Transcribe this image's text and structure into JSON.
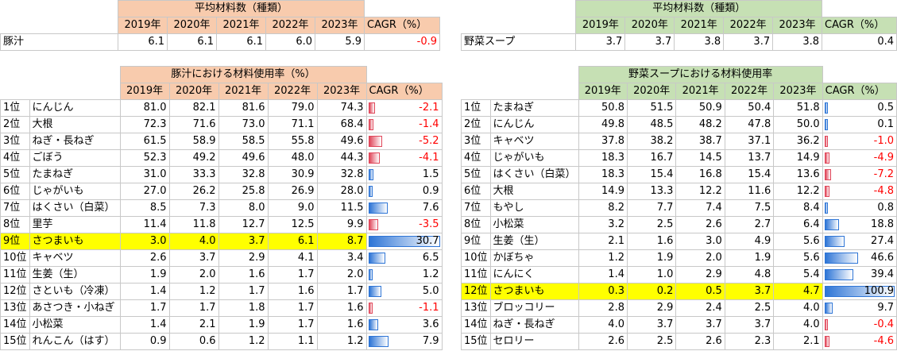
{
  "colors": {
    "pork_header": "#f8cbad",
    "veg_header": "#c6e0b4",
    "highlight": "#ffff00",
    "negative": "#ff0000",
    "bar_positive": "#2e75d6",
    "bar_negative": "#e0475a"
  },
  "top_left": {
    "title": "平均材料数（種類）",
    "years": [
      "2019年",
      "2020年",
      "2021年",
      "2022年",
      "2023年"
    ],
    "cagr_label": "CAGR（%）",
    "row": {
      "name": "豚汁",
      "values": [
        "6.1",
        "6.1",
        "6.1",
        "6.0",
        "5.9"
      ],
      "cagr": "-0.9"
    }
  },
  "top_right": {
    "title": "平均材料数（種類）",
    "years": [
      "2019年",
      "2020年",
      "2021年",
      "2022年",
      "2023年"
    ],
    "cagr_label": "CAGR（%）",
    "row": {
      "name": "野菜スープ",
      "values": [
        "3.7",
        "3.7",
        "3.8",
        "3.7",
        "3.8"
      ],
      "cagr": "0.4"
    }
  },
  "pork_usage": {
    "title": "豚汁における材料使用率（%）",
    "years": [
      "2019年",
      "2020年",
      "2021年",
      "2022年",
      "2023年"
    ],
    "cagr_label": "CAGR（%）",
    "rows": [
      {
        "rank": "1位",
        "name": "にんじん",
        "values": [
          "81.0",
          "82.1",
          "81.6",
          "79.0",
          "74.3"
        ],
        "cagr": "-2.1",
        "cagr_num": -2.1
      },
      {
        "rank": "2位",
        "name": "大根",
        "values": [
          "72.3",
          "71.6",
          "73.0",
          "71.1",
          "68.4"
        ],
        "cagr": "-1.4",
        "cagr_num": -1.4
      },
      {
        "rank": "3位",
        "name": "ねぎ・長ねぎ",
        "values": [
          "61.5",
          "58.9",
          "58.5",
          "55.8",
          "49.6"
        ],
        "cagr": "-5.2",
        "cagr_num": -5.2
      },
      {
        "rank": "4位",
        "name": "ごぼう",
        "values": [
          "52.3",
          "49.2",
          "49.6",
          "48.0",
          "44.3"
        ],
        "cagr": "-4.1",
        "cagr_num": -4.1
      },
      {
        "rank": "5位",
        "name": "たまねぎ",
        "values": [
          "31.0",
          "33.3",
          "32.8",
          "30.9",
          "32.8"
        ],
        "cagr": "1.5",
        "cagr_num": 1.5
      },
      {
        "rank": "6位",
        "name": "じゃがいも",
        "values": [
          "27.0",
          "26.2",
          "25.8",
          "26.9",
          "28.0"
        ],
        "cagr": "0.9",
        "cagr_num": 0.9
      },
      {
        "rank": "7位",
        "name": "はくさい（白菜）",
        "values": [
          "8.5",
          "7.3",
          "8.0",
          "9.0",
          "11.5"
        ],
        "cagr": "7.6",
        "cagr_num": 7.6
      },
      {
        "rank": "8位",
        "name": "里芋",
        "values": [
          "11.4",
          "11.8",
          "12.7",
          "12.5",
          "9.9"
        ],
        "cagr": "-3.5",
        "cagr_num": -3.5
      },
      {
        "rank": "9位",
        "name": "さつまいも",
        "values": [
          "3.0",
          "4.0",
          "3.7",
          "6.1",
          "8.7"
        ],
        "cagr": "30.7",
        "cagr_num": 30.7,
        "highlight": true
      },
      {
        "rank": "10位",
        "name": "キャベツ",
        "values": [
          "2.6",
          "3.7",
          "2.9",
          "4.1",
          "3.4"
        ],
        "cagr": "6.5",
        "cagr_num": 6.5
      },
      {
        "rank": "11位",
        "name": "生姜（生）",
        "values": [
          "1.9",
          "2.0",
          "1.6",
          "1.7",
          "2.0"
        ],
        "cagr": "1.2",
        "cagr_num": 1.2
      },
      {
        "rank": "12位",
        "name": "さといも（冷凍）",
        "values": [
          "1.4",
          "1.2",
          "1.7",
          "1.6",
          "1.7"
        ],
        "cagr": "5.0",
        "cagr_num": 5.0
      },
      {
        "rank": "13位",
        "name": "あさつき・小ねぎ",
        "values": [
          "1.7",
          "1.7",
          "1.8",
          "1.7",
          "1.6"
        ],
        "cagr": "-1.1",
        "cagr_num": -1.1
      },
      {
        "rank": "14位",
        "name": "小松菜",
        "values": [
          "1.4",
          "2.1",
          "1.9",
          "1.7",
          "1.6"
        ],
        "cagr": "3.6",
        "cagr_num": 3.6
      },
      {
        "rank": "15位",
        "name": "れんこん（はす）",
        "values": [
          "0.9",
          "0.6",
          "1.2",
          "1.1",
          "1.2"
        ],
        "cagr": "7.9",
        "cagr_num": 7.9
      }
    ]
  },
  "veg_usage": {
    "title": "野菜スープにおける材料使用率",
    "years": [
      "2019年",
      "2020年",
      "2021年",
      "2022年",
      "2023年"
    ],
    "cagr_label": "CAGR（%）",
    "rows": [
      {
        "rank": "1位",
        "name": "たまねぎ",
        "values": [
          "50.8",
          "51.5",
          "50.9",
          "50.4",
          "51.8"
        ],
        "cagr": "0.5",
        "cagr_num": 0.5
      },
      {
        "rank": "2位",
        "name": "にんじん",
        "values": [
          "49.8",
          "48.5",
          "48.2",
          "47.8",
          "50.0"
        ],
        "cagr": "0.1",
        "cagr_num": 0.1
      },
      {
        "rank": "3位",
        "name": "キャベツ",
        "values": [
          "37.8",
          "38.2",
          "38.7",
          "37.1",
          "36.2"
        ],
        "cagr": "-1.0",
        "cagr_num": -1.0
      },
      {
        "rank": "4位",
        "name": "じゃがいも",
        "values": [
          "18.3",
          "16.7",
          "14.5",
          "13.7",
          "14.9"
        ],
        "cagr": "-4.9",
        "cagr_num": -4.9
      },
      {
        "rank": "5位",
        "name": "はくさい（白菜）",
        "values": [
          "18.3",
          "15.4",
          "16.8",
          "15.4",
          "13.6"
        ],
        "cagr": "-7.2",
        "cagr_num": -7.2
      },
      {
        "rank": "6位",
        "name": "大根",
        "values": [
          "14.9",
          "13.3",
          "12.2",
          "11.6",
          "12.2"
        ],
        "cagr": "-4.8",
        "cagr_num": -4.8
      },
      {
        "rank": "7位",
        "name": "もやし",
        "values": [
          "8.2",
          "7.7",
          "7.4",
          "7.5",
          "8.4"
        ],
        "cagr": "0.8",
        "cagr_num": 0.8
      },
      {
        "rank": "8位",
        "name": "小松菜",
        "values": [
          "3.2",
          "2.5",
          "2.6",
          "2.7",
          "6.4"
        ],
        "cagr": "18.8",
        "cagr_num": 18.8
      },
      {
        "rank": "9位",
        "name": "生姜（生）",
        "values": [
          "2.1",
          "1.6",
          "3.0",
          "4.9",
          "5.6"
        ],
        "cagr": "27.4",
        "cagr_num": 27.4
      },
      {
        "rank": "10位",
        "name": "かぼちゃ",
        "values": [
          "1.2",
          "1.9",
          "2.0",
          "1.9",
          "5.6"
        ],
        "cagr": "46.6",
        "cagr_num": 46.6
      },
      {
        "rank": "11位",
        "name": "にんにく",
        "values": [
          "1.4",
          "1.0",
          "2.9",
          "4.8",
          "5.4"
        ],
        "cagr": "39.4",
        "cagr_num": 39.4
      },
      {
        "rank": "12位",
        "name": "さつまいも",
        "values": [
          "0.3",
          "0.2",
          "0.5",
          "3.7",
          "4.7"
        ],
        "cagr": "100.9",
        "cagr_num": 100.9,
        "highlight": true
      },
      {
        "rank": "13位",
        "name": "ブロッコリー",
        "values": [
          "2.8",
          "2.9",
          "2.4",
          "2.5",
          "4.0"
        ],
        "cagr": "9.7",
        "cagr_num": 9.7
      },
      {
        "rank": "14位",
        "name": "ねぎ・長ねぎ",
        "values": [
          "4.0",
          "3.7",
          "3.7",
          "3.7",
          "4.0"
        ],
        "cagr": "-0.4",
        "cagr_num": -0.4
      },
      {
        "rank": "15位",
        "name": "セロリー",
        "values": [
          "2.6",
          "2.5",
          "2.6",
          "2.3",
          "2.1"
        ],
        "cagr": "-4.6",
        "cagr_num": -4.6
      }
    ]
  }
}
